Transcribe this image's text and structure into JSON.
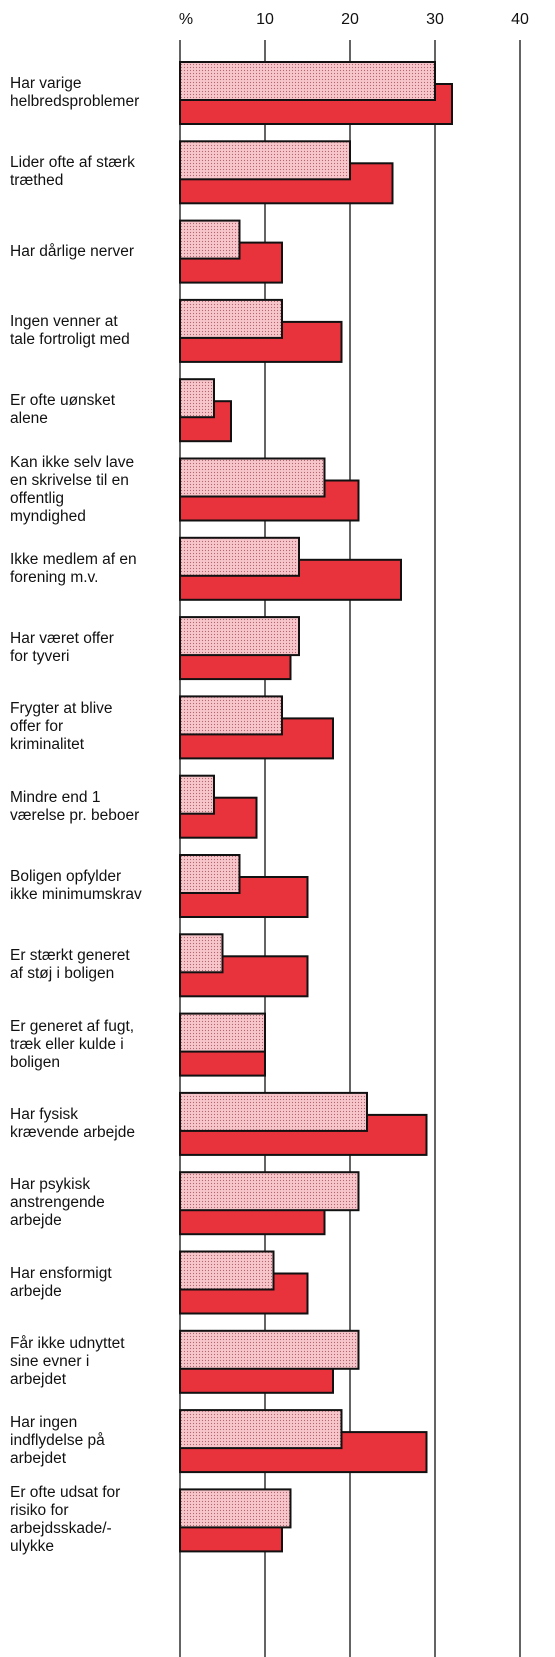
{
  "chart_data": {
    "type": "hbar",
    "categories": [
      "Har varige\nhelbredsproblemer",
      "Lider ofte af stærk\ntræthed",
      "Har dårlige nerver",
      "Ingen venner at\ntale fortroligt med",
      "Er ofte uønsket\nalene",
      "Kan ikke selv lave\nen skrivelse til en\noffentlig\nmyndighed",
      "Ikke medlem af en\nforening m.v.",
      "Har været offer\nfor tyveri",
      "Frygter at blive\noffer for\nkriminalitet",
      "Mindre end 1\nværelse pr. beboer",
      "Boligen opfylder\nikke minimumskrav",
      "Er stærkt generet\naf støj i boligen",
      "Er generet af fugt,\ntræk eller kulde i\nboligen",
      "Har fysisk\nkrævende arbejde",
      "Har psykisk\nanstrengende\narbejde",
      "Har ensformigt\narbejde",
      "Får ikke udnyttet\nsine evner i\narbejdet",
      "Har ingen\nindflydelse på\narbejdet",
      "Er ofte udsat for\nrisiko for\narbejdsskade/-\nulykke"
    ],
    "series": [
      {
        "color": "#f6c6cb",
        "values": [
          30,
          20,
          7,
          12,
          4,
          17,
          14,
          14,
          12,
          4,
          7,
          5,
          10,
          22,
          21,
          11,
          21,
          19,
          13
        ]
      },
      {
        "color": "#e8323c",
        "values": [
          32,
          25,
          12,
          19,
          6,
          21,
          26,
          13,
          18,
          9,
          15,
          15,
          10,
          29,
          17,
          15,
          18,
          29,
          12
        ]
      }
    ],
    "xlim": [
      0,
      40
    ],
    "xticks": [
      {
        "value": 0,
        "label": "%"
      },
      10,
      20,
      30,
      40
    ],
    "grid": true
  }
}
